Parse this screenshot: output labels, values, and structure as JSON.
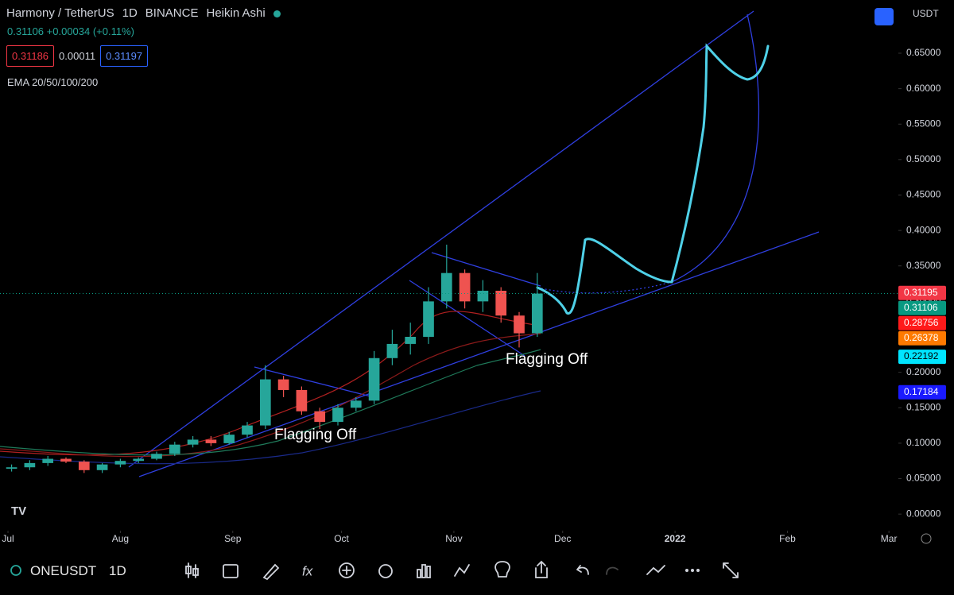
{
  "header": {
    "symbol": "Harmony / TetherUS",
    "interval": "1D",
    "exchange": "BINANCE",
    "style": "Heikin Ashi",
    "last": "0.31106",
    "change": "+0.00034 (+0.11%)",
    "bid": "0.31186",
    "spread": "0.00011",
    "ask": "0.31197",
    "indicator": "EMA 20/50/100/200"
  },
  "chart_data": {
    "type": "candlestick",
    "y_unit": "USDT",
    "x": [
      1,
      6,
      11,
      16,
      21,
      26,
      31,
      36,
      41,
      46,
      51,
      56,
      61,
      66,
      71,
      76,
      81,
      86,
      91,
      96,
      101,
      106,
      111,
      116,
      121,
      126,
      131,
      136,
      141,
      146
    ],
    "open": [
      0.064,
      0.066,
      0.072,
      0.078,
      0.074,
      0.062,
      0.07,
      0.075,
      0.078,
      0.085,
      0.098,
      0.105,
      0.1,
      0.112,
      0.125,
      0.19,
      0.175,
      0.145,
      0.13,
      0.15,
      0.16,
      0.22,
      0.24,
      0.25,
      0.3,
      0.34,
      0.3,
      0.315,
      0.28,
      0.255
    ],
    "high": [
      0.07,
      0.076,
      0.082,
      0.08,
      0.076,
      0.072,
      0.078,
      0.08,
      0.088,
      0.102,
      0.11,
      0.11,
      0.116,
      0.13,
      0.21,
      0.195,
      0.18,
      0.15,
      0.155,
      0.165,
      0.23,
      0.26,
      0.27,
      0.32,
      0.38,
      0.345,
      0.33,
      0.32,
      0.285,
      0.34
    ],
    "low": [
      0.06,
      0.062,
      0.068,
      0.072,
      0.058,
      0.058,
      0.066,
      0.072,
      0.076,
      0.082,
      0.094,
      0.096,
      0.098,
      0.108,
      0.12,
      0.165,
      0.14,
      0.12,
      0.125,
      0.145,
      0.155,
      0.21,
      0.225,
      0.24,
      0.29,
      0.29,
      0.285,
      0.27,
      0.235,
      0.25
    ],
    "close": [
      0.066,
      0.072,
      0.078,
      0.074,
      0.062,
      0.07,
      0.075,
      0.078,
      0.085,
      0.098,
      0.105,
      0.1,
      0.112,
      0.125,
      0.19,
      0.175,
      0.145,
      0.13,
      0.15,
      0.16,
      0.22,
      0.24,
      0.25,
      0.3,
      0.34,
      0.3,
      0.315,
      0.28,
      0.255,
      0.311
    ],
    "up_color": "#26a69a",
    "down_color": "#ef5350",
    "xlim": [
      -2.2,
      245.6
    ],
    "xticks": [
      {
        "value": 0,
        "label": "Jul"
      },
      {
        "value": 31,
        "label": "Aug"
      },
      {
        "value": 62,
        "label": "Sep"
      },
      {
        "value": 92,
        "label": "Oct"
      },
      {
        "value": 123,
        "label": "Nov"
      },
      {
        "value": 153,
        "label": "Dec"
      },
      {
        "value": 184,
        "label": "2022"
      },
      {
        "value": 215,
        "label": "Feb"
      },
      {
        "value": 243,
        "label": "Mar"
      }
    ],
    "ylim": [
      -0.02,
      0.72
    ],
    "yticks": [
      {
        "value": 0,
        "label": "0.00000"
      },
      {
        "value": 0.05,
        "label": "0.05000"
      },
      {
        "value": 0.1,
        "label": "0.10000"
      },
      {
        "value": 0.15,
        "label": "0.15000"
      },
      {
        "value": 0.2,
        "label": "0.20000"
      },
      {
        "value": 0.25,
        "label": "0.25000"
      },
      {
        "value": 0.3,
        "label": "0.30000"
      },
      {
        "value": 0.35,
        "label": "0.35000"
      },
      {
        "value": 0.4,
        "label": "0.40000"
      },
      {
        "value": 0.45,
        "label": "0.45000"
      },
      {
        "value": 0.5,
        "label": "0.50000"
      },
      {
        "value": 0.55,
        "label": "0.55000"
      },
      {
        "value": 0.6,
        "label": "0.60000"
      },
      {
        "value": 0.65,
        "label": "0.65000"
      }
    ],
    "price_tags": [
      {
        "value": 0.31195,
        "label": "0.31195",
        "color": "#f23645"
      },
      {
        "value": 0.31106,
        "label": "0.31106",
        "color": "#089981"
      },
      {
        "value": 0.28756,
        "label": "0.28756",
        "color": "#ff1a1a"
      },
      {
        "value": 0.26378,
        "label": "0.26378",
        "color": "#ff7a00"
      },
      {
        "value": 0.22192,
        "label": "0.22192",
        "color": "#00e5ff"
      },
      {
        "value": 0.17184,
        "label": "0.17184",
        "color": "#1a1aff"
      }
    ],
    "annotations": [
      "Flagging Off",
      "Flagging Off"
    ]
  },
  "toolbar": {
    "symbol": "ONEUSDT",
    "interval": "1D"
  }
}
